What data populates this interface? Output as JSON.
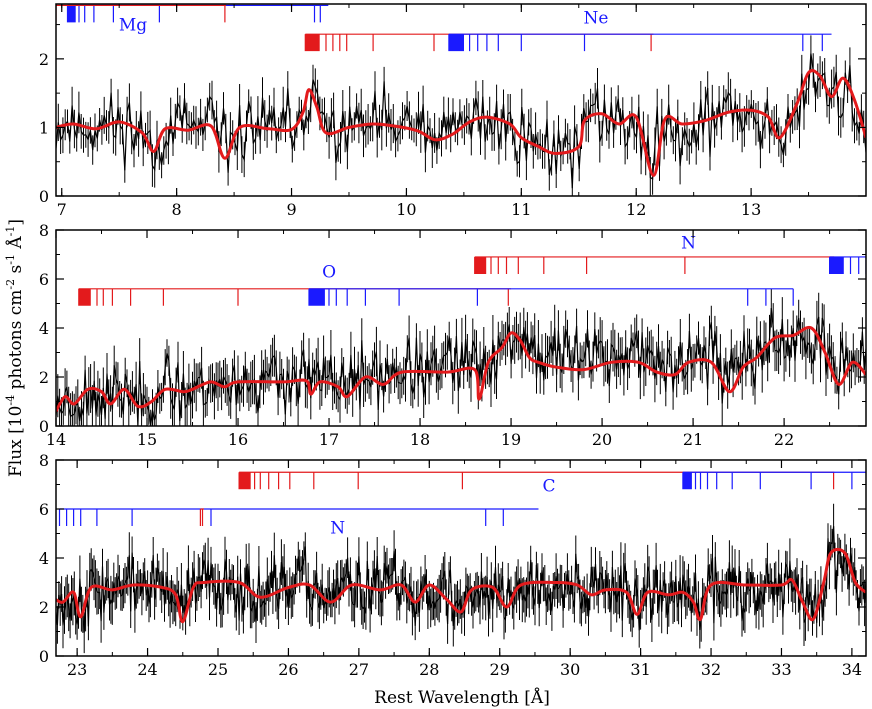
{
  "chart_data": {
    "type": "line",
    "ylabel_parts": {
      "base": "Flux [10",
      "exp1": "-4",
      "mid1": " photons cm",
      "exp2": "-2",
      "mid2": " s",
      "exp3": "-1",
      "mid3": " Å",
      "exp4": "-1",
      "end": "]"
    },
    "xlabel": "Rest Wavelength [Å]",
    "series": [
      {
        "label": "observed",
        "color": "#000000"
      },
      {
        "label": "model",
        "color": "#e31a1c"
      }
    ],
    "panels": [
      {
        "xlim": [
          6.95,
          14.0
        ],
        "ylim": [
          0,
          2.8
        ],
        "xticks": [
          7,
          8,
          9,
          10,
          11,
          12,
          13
        ],
        "yticks": [
          0,
          1,
          2
        ],
        "model_points": [
          [
            6.95,
            1.0
          ],
          [
            7.1,
            1.05
          ],
          [
            7.3,
            0.98
          ],
          [
            7.5,
            1.08
          ],
          [
            7.7,
            0.92
          ],
          [
            7.8,
            0.65
          ],
          [
            7.9,
            0.98
          ],
          [
            8.1,
            0.96
          ],
          [
            8.3,
            1.02
          ],
          [
            8.42,
            0.55
          ],
          [
            8.55,
            1.0
          ],
          [
            8.8,
            0.98
          ],
          [
            9.0,
            0.97
          ],
          [
            9.1,
            1.22
          ],
          [
            9.15,
            1.55
          ],
          [
            9.22,
            1.3
          ],
          [
            9.3,
            0.92
          ],
          [
            9.5,
            1.0
          ],
          [
            9.7,
            1.05
          ],
          [
            9.9,
            1.02
          ],
          [
            10.1,
            0.95
          ],
          [
            10.25,
            0.82
          ],
          [
            10.4,
            0.9
          ],
          [
            10.55,
            1.08
          ],
          [
            10.7,
            1.15
          ],
          [
            10.9,
            1.05
          ],
          [
            11.0,
            0.85
          ],
          [
            11.15,
            0.72
          ],
          [
            11.3,
            0.62
          ],
          [
            11.5,
            0.72
          ],
          [
            11.55,
            1.1
          ],
          [
            11.7,
            1.2
          ],
          [
            11.85,
            1.05
          ],
          [
            12.0,
            1.15
          ],
          [
            12.15,
            0.3
          ],
          [
            12.25,
            1.12
          ],
          [
            12.4,
            1.05
          ],
          [
            12.6,
            1.1
          ],
          [
            12.8,
            1.22
          ],
          [
            13.0,
            1.25
          ],
          [
            13.15,
            1.15
          ],
          [
            13.25,
            0.85
          ],
          [
            13.4,
            1.35
          ],
          [
            13.5,
            1.8
          ],
          [
            13.6,
            1.75
          ],
          [
            13.7,
            1.45
          ],
          [
            13.8,
            1.72
          ],
          [
            13.9,
            1.4
          ],
          [
            14.0,
            0.85
          ]
        ],
        "obs_seed": 11,
        "obs_noise": 0.24,
        "obs_err": 0.24,
        "ions": [
          {
            "name": "Mg",
            "color": "#1a1aff",
            "y": 2.78,
            "x0": 7.05,
            "x1": 9.32,
            "dense_end": 7.12,
            "lines": [
              7.15,
              7.2,
              7.28,
              7.45,
              7.85,
              9.2,
              9.25
            ],
            "label_x": 7.62,
            "label_y": 2.5
          },
          {
            "name": "Mg",
            "color": "#e31a1c",
            "y": 2.78,
            "x0": 6.95,
            "x1": 8.43,
            "dense_end": 6.95,
            "lines": [
              8.42
            ],
            "label_x": null,
            "label_y": null
          },
          {
            "name": "Ne",
            "color": "#e31a1c",
            "y": 2.36,
            "x0": 9.12,
            "x1": 12.15,
            "dense_end": 9.24,
            "lines": [
              9.3,
              9.36,
              9.42,
              9.48,
              9.71,
              10.24,
              12.13
            ],
            "label_x": null,
            "label_y": null
          },
          {
            "name": "Ne",
            "color": "#1a1aff",
            "y": 2.36,
            "x0": 10.37,
            "x1": 13.7,
            "dense_end": 10.5,
            "lines": [
              10.55,
              10.62,
              10.7,
              10.8,
              11.0,
              11.55,
              13.45,
              13.62
            ],
            "label_x": 11.65,
            "label_y": 2.6
          }
        ]
      },
      {
        "xlim": [
          14.0,
          22.9
        ],
        "ylim": [
          0,
          8
        ],
        "xticks": [
          14,
          15,
          16,
          17,
          18,
          19,
          20,
          21,
          22
        ],
        "yticks": [
          0,
          2,
          4,
          6,
          8
        ],
        "model_points": [
          [
            14.0,
            0.6
          ],
          [
            14.1,
            1.2
          ],
          [
            14.2,
            0.9
          ],
          [
            14.35,
            1.5
          ],
          [
            14.5,
            1.4
          ],
          [
            14.6,
            0.9
          ],
          [
            14.75,
            1.5
          ],
          [
            14.9,
            0.8
          ],
          [
            15.05,
            1.0
          ],
          [
            15.2,
            1.5
          ],
          [
            15.4,
            1.4
          ],
          [
            15.5,
            1.5
          ],
          [
            15.7,
            1.8
          ],
          [
            15.85,
            1.6
          ],
          [
            16.0,
            1.8
          ],
          [
            16.5,
            1.8
          ],
          [
            16.75,
            1.85
          ],
          [
            16.8,
            1.3
          ],
          [
            16.9,
            1.8
          ],
          [
            17.1,
            1.6
          ],
          [
            17.2,
            1.2
          ],
          [
            17.4,
            2.0
          ],
          [
            17.6,
            1.7
          ],
          [
            17.8,
            2.2
          ],
          [
            18.3,
            2.2
          ],
          [
            18.6,
            2.3
          ],
          [
            18.65,
            1.1
          ],
          [
            18.75,
            2.6
          ],
          [
            18.9,
            3.2
          ],
          [
            19.0,
            3.8
          ],
          [
            19.1,
            3.5
          ],
          [
            19.2,
            2.8
          ],
          [
            19.3,
            2.6
          ],
          [
            19.5,
            2.4
          ],
          [
            19.8,
            2.3
          ],
          [
            20.1,
            2.6
          ],
          [
            20.4,
            2.6
          ],
          [
            20.6,
            2.2
          ],
          [
            20.8,
            2.1
          ],
          [
            20.95,
            2.6
          ],
          [
            21.2,
            2.6
          ],
          [
            21.4,
            1.4
          ],
          [
            21.55,
            2.4
          ],
          [
            21.7,
            2.8
          ],
          [
            21.9,
            3.6
          ],
          [
            22.1,
            3.7
          ],
          [
            22.3,
            4.0
          ],
          [
            22.45,
            3.0
          ],
          [
            22.6,
            1.7
          ],
          [
            22.75,
            2.6
          ],
          [
            22.9,
            2.1
          ]
        ],
        "obs_seed": 23,
        "obs_noise": 0.62,
        "obs_err": 0.78,
        "obs_trend": [
          [
            14.0,
            1.0
          ],
          [
            16.0,
            1.8
          ],
          [
            18.0,
            2.2
          ],
          [
            19.0,
            3.5
          ],
          [
            21.0,
            3.0
          ],
          [
            22.9,
            3.0
          ]
        ],
        "ions": [
          {
            "name": "O",
            "color": "#e31a1c",
            "y": 5.6,
            "x0": 14.25,
            "x1": 19.0,
            "dense_end": 14.38,
            "lines": [
              14.45,
              14.52,
              14.62,
              14.82,
              15.18,
              16.0,
              18.97
            ],
            "label_x": null,
            "label_y": null
          },
          {
            "name": "O",
            "color": "#1a1aff",
            "y": 5.6,
            "x0": 16.78,
            "x1": 22.1,
            "dense_end": 16.95,
            "lines": [
              17.0,
              17.08,
              17.2,
              17.4,
              17.77,
              18.63,
              21.6,
              21.8,
              22.1
            ],
            "label_x": 17.0,
            "label_y": 6.3
          },
          {
            "name": "N",
            "color": "#e31a1c",
            "y": 6.9,
            "x0": 18.6,
            "x1": 22.55,
            "dense_end": 18.72,
            "lines": [
              18.78,
              18.86,
              18.95,
              19.08,
              19.36,
              19.83,
              20.91
            ],
            "label_x": null,
            "label_y": null
          },
          {
            "name": "N",
            "color": "#1a1aff",
            "y": 6.9,
            "x0": 22.5,
            "x1": 22.9,
            "dense_end": 22.65,
            "lines": [
              22.73,
              22.82,
              22.9
            ],
            "label_x": 20.95,
            "label_y": 7.5
          }
        ]
      },
      {
        "xlim": [
          22.7,
          34.2
        ],
        "ylim": [
          0,
          8
        ],
        "xticks": [
          23,
          24,
          25,
          26,
          27,
          28,
          29,
          30,
          31,
          32,
          33,
          34
        ],
        "yticks": [
          0,
          2,
          4,
          6,
          8
        ],
        "model_points": [
          [
            22.7,
            2.3
          ],
          [
            22.8,
            2.2
          ],
          [
            22.95,
            2.6
          ],
          [
            23.05,
            1.6
          ],
          [
            23.2,
            2.8
          ],
          [
            23.5,
            2.7
          ],
          [
            23.8,
            2.9
          ],
          [
            24.2,
            2.8
          ],
          [
            24.4,
            2.5
          ],
          [
            24.5,
            1.4
          ],
          [
            24.65,
            2.8
          ],
          [
            24.8,
            3.0
          ],
          [
            25.3,
            3.0
          ],
          [
            25.6,
            2.4
          ],
          [
            26.0,
            2.8
          ],
          [
            26.3,
            2.9
          ],
          [
            26.6,
            2.2
          ],
          [
            26.9,
            2.9
          ],
          [
            27.3,
            2.7
          ],
          [
            27.6,
            2.9
          ],
          [
            27.8,
            2.2
          ],
          [
            28.0,
            2.9
          ],
          [
            28.25,
            2.3
          ],
          [
            28.45,
            1.8
          ],
          [
            28.6,
            2.7
          ],
          [
            28.9,
            2.8
          ],
          [
            29.1,
            2.0
          ],
          [
            29.3,
            2.9
          ],
          [
            29.8,
            3.0
          ],
          [
            30.1,
            2.9
          ],
          [
            30.3,
            2.5
          ],
          [
            30.5,
            2.7
          ],
          [
            30.8,
            2.6
          ],
          [
            30.95,
            1.7
          ],
          [
            31.1,
            2.6
          ],
          [
            31.4,
            2.5
          ],
          [
            31.6,
            2.6
          ],
          [
            31.75,
            2.2
          ],
          [
            31.85,
            1.5
          ],
          [
            32.0,
            2.9
          ],
          [
            32.5,
            2.9
          ],
          [
            33.0,
            2.9
          ],
          [
            33.15,
            3.1
          ],
          [
            33.3,
            2.2
          ],
          [
            33.45,
            1.5
          ],
          [
            33.6,
            3.0
          ],
          [
            33.7,
            4.2
          ],
          [
            33.9,
            4.2
          ],
          [
            34.05,
            3.0
          ],
          [
            34.2,
            2.6
          ]
        ],
        "obs_seed": 37,
        "obs_noise": 0.62,
        "obs_err": 0.75,
        "ions": [
          {
            "name": "C",
            "color": "#e31a1c",
            "y": 7.5,
            "x0": 25.3,
            "x1": 33.75,
            "dense_end": 25.46,
            "lines": [
              25.52,
              25.6,
              25.72,
              25.86,
              26.02,
              26.36,
              26.99,
              28.47,
              33.74
            ],
            "label_x": null,
            "label_y": null
          },
          {
            "name": "C",
            "color": "#1a1aff",
            "y": 7.5,
            "x0": 31.6,
            "x1": 34.2,
            "dense_end": 31.72,
            "lines": [
              31.78,
              31.85,
              31.95,
              32.08,
              32.3,
              32.7,
              33.42,
              34.0
            ],
            "label_x": 29.7,
            "label_y": 6.95
          },
          {
            "name": "N",
            "color": "#1a1aff",
            "y": 6.0,
            "x0": 22.75,
            "x1": 29.55,
            "dense_end": 22.75,
            "lines": [
              22.85,
              22.95,
              23.05,
              23.28,
              23.78,
              24.9,
              28.8,
              29.05
            ],
            "label_x": 26.7,
            "label_y": 5.25
          },
          {
            "name": "N",
            "color": "#e31a1c",
            "y": 6.0,
            "x0": 24.75,
            "x1": 24.8,
            "dense_end": 24.75,
            "lines": [
              24.78
            ],
            "label_x": null,
            "label_y": null
          }
        ]
      }
    ]
  }
}
